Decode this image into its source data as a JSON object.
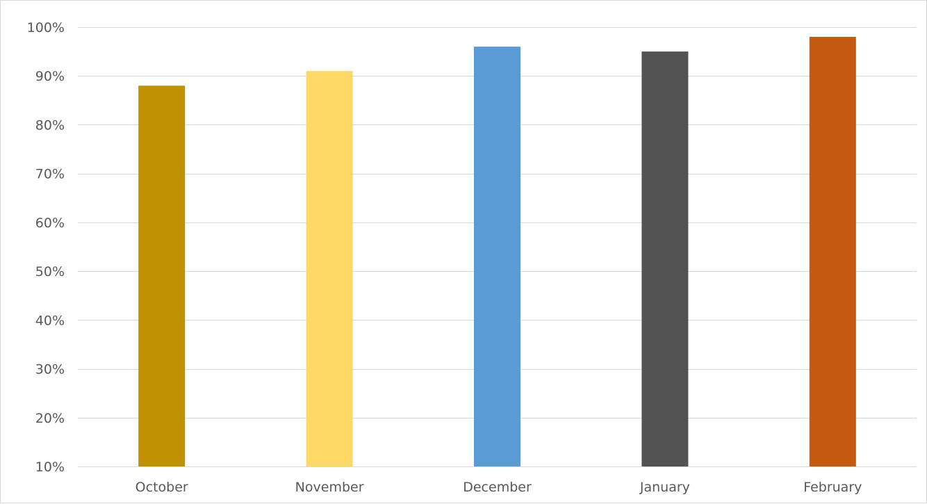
{
  "chart_data": {
    "type": "bar",
    "title": "",
    "xlabel": "",
    "ylabel": "",
    "categories": [
      "October",
      "November",
      "December",
      "January",
      "February"
    ],
    "values": [
      0.88,
      0.91,
      0.96,
      0.95,
      0.98
    ],
    "colors": [
      "#bf9000",
      "#ffd966",
      "#5b9bd5",
      "#525252",
      "#c55a11"
    ],
    "ylim": [
      0.1,
      1.0
    ],
    "yticks": [
      0.1,
      0.2,
      0.3,
      0.4,
      0.5,
      0.6,
      0.7,
      0.8,
      0.9,
      1.0
    ],
    "ytick_labels": [
      "10%",
      "20%",
      "30%",
      "40%",
      "50%",
      "60%",
      "70%",
      "80%",
      "90%",
      "100%"
    ],
    "grid": true,
    "legend": "none",
    "gridline_color": "#d9d9d9",
    "axis_text_color": "#595959"
  }
}
